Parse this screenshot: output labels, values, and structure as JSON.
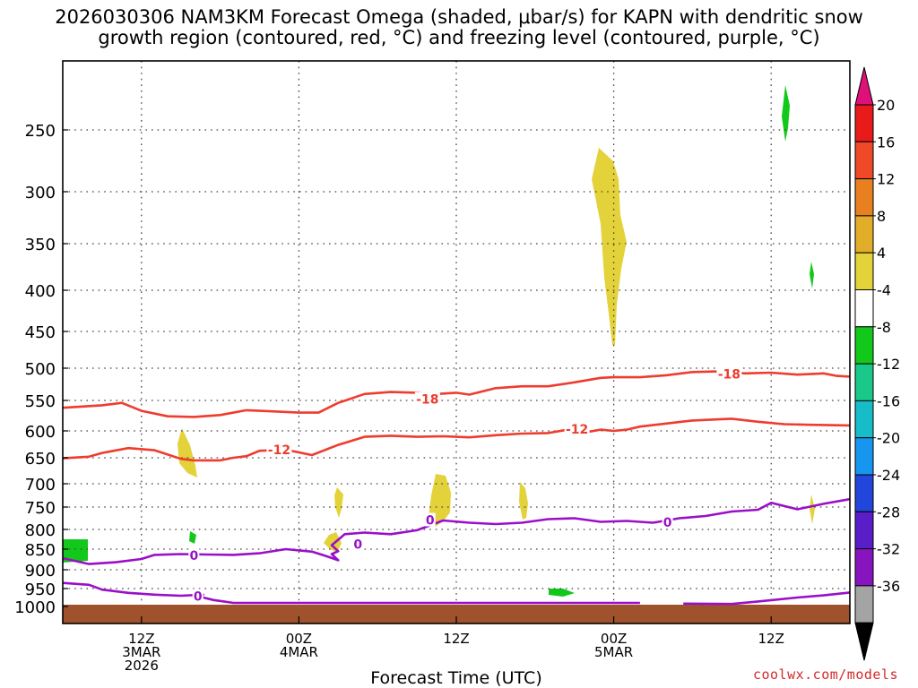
{
  "chart_data": {
    "type": "contour",
    "title": "2026030306 NAM3KM Forecast Omega (shaded, μbar/s) for KAPN with dendritic snow growth region (contoured, red, °C) and freezing level (contoured, purple, °C)",
    "title_lines": [
      "2026030306 NAM3KM Forecast Omega (shaded, μbar/s) for KAPN with dendritic snow",
      "growth region (contoured, red, °C) and freezing level (contoured, purple, °C)"
    ],
    "xlabel": "Forecast Time (UTC)",
    "ylabel": "",
    "x_range_hours": [
      6,
      66
    ],
    "y_range_hpa": [
      1025,
      200
    ],
    "y_ticks": [
      250,
      300,
      350,
      400,
      450,
      500,
      550,
      600,
      650,
      700,
      750,
      800,
      850,
      900,
      950,
      1000
    ],
    "x_ticks": [
      {
        "hour": 12,
        "lines": [
          "12Z",
          "3MAR",
          "2026"
        ]
      },
      {
        "hour": 24,
        "lines": [
          "00Z",
          "4MAR"
        ]
      },
      {
        "hour": 36,
        "lines": [
          "12Z"
        ]
      },
      {
        "hour": 48,
        "lines": [
          "00Z",
          "5MAR"
        ]
      },
      {
        "hour": 60,
        "lines": [
          "12Z"
        ]
      }
    ],
    "colorbar": {
      "labels": [
        "20",
        "16",
        "12",
        "8",
        "4",
        "-4",
        "-8",
        "-12",
        "-16",
        "-20",
        "-24",
        "-28",
        "-32",
        "-36"
      ],
      "colors": [
        "#e81a1a",
        "#ee4a28",
        "#e98020",
        "#e2ae2a",
        "#e4d23a",
        "#ffffff",
        "#12c81a",
        "#1ac88a",
        "#16bcc8",
        "#1696ee",
        "#2245dc",
        "#5a1ec8",
        "#8814c0",
        "#a4a4a4"
      ],
      "top_arrow_color": "#e0107a",
      "bottom_arrow_color": "#000000"
    },
    "series": [
      {
        "name": "-18",
        "color": "#ee3c2e",
        "label": "-18",
        "label_points": [
          [
            33.8,
            548
          ],
          [
            56.8,
            509
          ]
        ],
        "points": [
          [
            6,
            562
          ],
          [
            9,
            558
          ],
          [
            10.5,
            554
          ],
          [
            12,
            567
          ],
          [
            14,
            576
          ],
          [
            16,
            577
          ],
          [
            18,
            574
          ],
          [
            20,
            566
          ],
          [
            22,
            568
          ],
          [
            24,
            570
          ],
          [
            25.5,
            570
          ],
          [
            27,
            554
          ],
          [
            29,
            540
          ],
          [
            31,
            537
          ],
          [
            33,
            538
          ],
          [
            34.5,
            540
          ],
          [
            36,
            538
          ],
          [
            37,
            541
          ],
          [
            39,
            531
          ],
          [
            41,
            528
          ],
          [
            43,
            528
          ],
          [
            45,
            522
          ],
          [
            47,
            515
          ],
          [
            48,
            514
          ],
          [
            50,
            514
          ],
          [
            52,
            511
          ],
          [
            54,
            506
          ],
          [
            56,
            505
          ],
          [
            58,
            508
          ],
          [
            60,
            507
          ],
          [
            62,
            510
          ],
          [
            64,
            508
          ],
          [
            65,
            512
          ],
          [
            66,
            513
          ]
        ]
      },
      {
        "name": "-12",
        "color": "#ee3c2e",
        "label": "-12",
        "label_points": [
          [
            22.5,
            635
          ],
          [
            45.2,
            597
          ]
        ],
        "points": [
          [
            6,
            651
          ],
          [
            8,
            648
          ],
          [
            9,
            641
          ],
          [
            11,
            632
          ],
          [
            13,
            636
          ],
          [
            14,
            644
          ],
          [
            15,
            652
          ],
          [
            16,
            655
          ],
          [
            18,
            655
          ],
          [
            19,
            650
          ],
          [
            20,
            647
          ],
          [
            21,
            637
          ],
          [
            23,
            635
          ],
          [
            25,
            645
          ],
          [
            27,
            626
          ],
          [
            29,
            611
          ],
          [
            31,
            609
          ],
          [
            33,
            611
          ],
          [
            35,
            610
          ],
          [
            37,
            612
          ],
          [
            39,
            608
          ],
          [
            41,
            605
          ],
          [
            43,
            604
          ],
          [
            45,
            596
          ],
          [
            46,
            602
          ],
          [
            47,
            598
          ],
          [
            48,
            600
          ],
          [
            49,
            598
          ],
          [
            50,
            593
          ],
          [
            52,
            588
          ],
          [
            54,
            583
          ],
          [
            56,
            581
          ],
          [
            57,
            580
          ],
          [
            59,
            585
          ],
          [
            61,
            589
          ],
          [
            63,
            590
          ],
          [
            66,
            591
          ]
        ]
      },
      {
        "name": "0",
        "color": "#9a10c8",
        "label": "0",
        "label_points": [
          [
            16,
            865
          ],
          [
            34,
            779
          ],
          [
            16.3,
            971
          ],
          [
            28.5,
            838
          ],
          [
            52.1,
            784
          ]
        ],
        "points": [
          [
            6,
            872
          ],
          [
            8,
            886
          ],
          [
            10,
            882
          ],
          [
            12,
            874
          ],
          [
            13,
            864
          ],
          [
            15,
            862
          ],
          [
            17,
            863
          ],
          [
            19,
            864
          ],
          [
            21,
            860
          ],
          [
            23,
            850
          ],
          [
            25,
            856
          ],
          [
            26,
            866
          ],
          [
            27,
            877
          ],
          [
            26.5,
            862
          ],
          [
            27,
            855
          ],
          [
            26.5,
            840
          ],
          [
            27.5,
            812
          ],
          [
            29,
            808
          ],
          [
            31,
            812
          ],
          [
            33,
            802
          ],
          [
            35,
            780
          ],
          [
            37,
            785
          ],
          [
            39,
            788
          ],
          [
            41,
            785
          ],
          [
            43,
            777
          ],
          [
            45,
            775
          ],
          [
            47,
            783
          ],
          [
            49,
            781
          ],
          [
            51,
            785
          ],
          [
            53,
            775
          ],
          [
            55,
            770
          ],
          [
            57,
            760
          ],
          [
            59,
            756
          ],
          [
            60,
            741
          ],
          [
            62,
            755
          ],
          [
            64,
            743
          ],
          [
            66,
            733
          ]
        ]
      },
      {
        "name": "0",
        "color": "#9a10c8",
        "label": "0",
        "label_points": [],
        "points": [
          [
            6,
            935
          ],
          [
            8,
            940
          ],
          [
            9,
            953
          ],
          [
            11,
            962
          ],
          [
            13,
            967
          ],
          [
            15,
            970
          ],
          [
            16.7,
            967
          ],
          [
            16.2,
            980
          ],
          [
            16.7,
            975
          ],
          [
            17.5,
            982
          ],
          [
            19,
            990
          ],
          [
            23,
            990
          ],
          [
            28,
            990
          ],
          [
            33,
            990
          ],
          [
            38,
            990
          ],
          [
            44,
            990
          ],
          [
            50,
            990
          ]
        ]
      },
      {
        "name": "0",
        "color": "#9a10c8",
        "label": "0",
        "label_points": [],
        "points": [
          [
            53.3,
            992
          ],
          [
            57,
            993
          ],
          [
            59,
            986
          ],
          [
            62,
            975
          ],
          [
            64,
            969
          ],
          [
            66,
            961
          ]
        ]
      }
    ]
  },
  "credit": "coolwx.com/models"
}
